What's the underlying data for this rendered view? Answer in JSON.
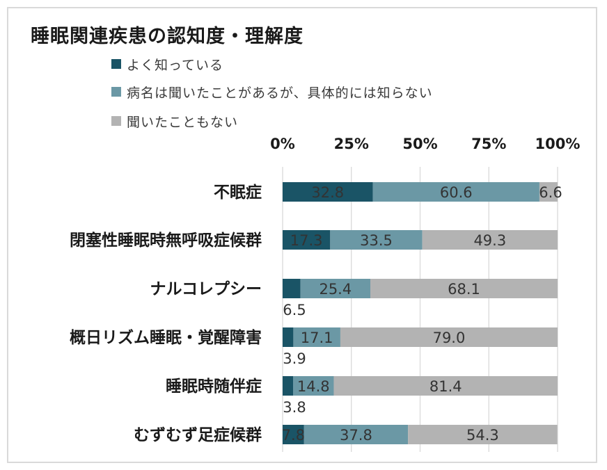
{
  "chart_data": {
    "type": "bar",
    "orientation": "horizontal",
    "stacked": true,
    "title": "睡眠関連疾患の認知度・理解度",
    "xlim": [
      0,
      100
    ],
    "x_ticks": [
      "0%",
      "25%",
      "50%",
      "75%",
      "100%"
    ],
    "x_tick_values": [
      0,
      25,
      50,
      75,
      100
    ],
    "grid": true,
    "legend_position": "top-left",
    "categories": [
      "不眠症",
      "閉塞性睡眠時無呼吸症候群",
      "ナルコレプシー",
      "概日リズム睡眠・覚醒障害",
      "睡眠時随伴症",
      "むずむず足症候群"
    ],
    "series": [
      {
        "name": "よく知っている",
        "color": "#1a5466",
        "values": [
          32.8,
          17.3,
          6.5,
          3.9,
          3.8,
          7.8
        ]
      },
      {
        "name": "病名は聞いたことがあるが、具体的には知らない",
        "color": "#6b98a5",
        "values": [
          60.6,
          33.5,
          25.4,
          17.1,
          14.8,
          37.8
        ]
      },
      {
        "name": "聞いたこともない",
        "color": "#b3b3b3",
        "values": [
          6.6,
          49.3,
          68.1,
          79.0,
          81.4,
          54.3
        ]
      }
    ],
    "value_labels": [
      [
        "32.8",
        "60.6",
        "6.6"
      ],
      [
        "17.3",
        "33.5",
        "49.3"
      ],
      [
        "6.5",
        "25.4",
        "68.1"
      ],
      [
        "3.9",
        "17.1",
        "79.0"
      ],
      [
        "3.8",
        "14.8",
        "81.4"
      ],
      [
        "7.8",
        "37.8",
        "54.3"
      ]
    ]
  }
}
